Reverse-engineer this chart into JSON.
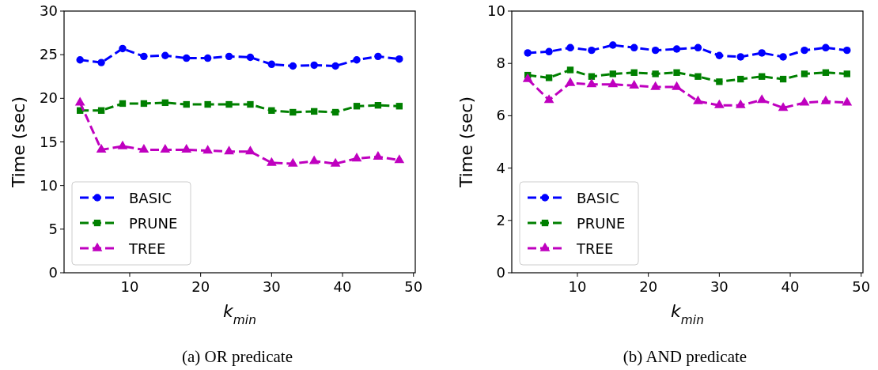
{
  "chart_data": [
    {
      "type": "line",
      "xlabel": "k$_{min}$",
      "ylabel": "Time (sec)",
      "annotations": [
        "(a) OR predicate"
      ],
      "x": [
        3,
        6,
        9,
        12,
        15,
        18,
        21,
        24,
        27,
        30,
        33,
        36,
        39,
        42,
        45,
        48
      ],
      "xlim": [
        0.75,
        50.25
      ],
      "xticks": [
        10,
        20,
        30,
        40,
        50
      ],
      "ylim": [
        0,
        30
      ],
      "yticks": [
        0,
        5,
        10,
        15,
        20,
        25,
        30
      ],
      "legend": "bottom left",
      "line_style": "dashed",
      "grid": false,
      "series": [
        {
          "name": "BASIC",
          "color": "#0000ff",
          "marker": "circle",
          "values": [
            24.4,
            24.1,
            25.7,
            24.8,
            24.9,
            24.6,
            24.6,
            24.8,
            24.7,
            23.9,
            23.7,
            23.8,
            23.7,
            24.4,
            24.8,
            24.5
          ]
        },
        {
          "name": "PRUNE",
          "color": "#008000",
          "marker": "square",
          "values": [
            18.6,
            18.6,
            19.4,
            19.4,
            19.5,
            19.3,
            19.3,
            19.3,
            19.3,
            18.6,
            18.4,
            18.5,
            18.4,
            19.1,
            19.2,
            19.1
          ]
        },
        {
          "name": "TREE",
          "color": "#bf00bf",
          "marker": "triangle",
          "values": [
            19.5,
            14.1,
            14.5,
            14.1,
            14.1,
            14.1,
            14.0,
            13.9,
            13.9,
            12.6,
            12.5,
            12.8,
            12.5,
            13.1,
            13.3,
            12.9
          ]
        }
      ]
    },
    {
      "type": "line",
      "xlabel": "k$_{min}$",
      "ylabel": "Time (sec)",
      "annotations": [
        "(b) AND predicate"
      ],
      "x": [
        3,
        6,
        9,
        12,
        15,
        18,
        21,
        24,
        27,
        30,
        33,
        36,
        39,
        42,
        45,
        48
      ],
      "xlim": [
        0.75,
        50.25
      ],
      "xticks": [
        10,
        20,
        30,
        40,
        50
      ],
      "ylim": [
        0,
        10
      ],
      "yticks": [
        0,
        2,
        4,
        6,
        8,
        10
      ],
      "legend": "bottom left",
      "line_style": "dashed",
      "grid": false,
      "series": [
        {
          "name": "BASIC",
          "color": "#0000ff",
          "marker": "circle",
          "values": [
            8.4,
            8.45,
            8.6,
            8.5,
            8.7,
            8.6,
            8.5,
            8.55,
            8.6,
            8.3,
            8.25,
            8.4,
            8.25,
            8.5,
            8.6,
            8.5
          ]
        },
        {
          "name": "PRUNE",
          "color": "#008000",
          "marker": "square",
          "values": [
            7.55,
            7.45,
            7.75,
            7.5,
            7.6,
            7.65,
            7.6,
            7.65,
            7.5,
            7.3,
            7.4,
            7.5,
            7.4,
            7.6,
            7.65,
            7.6
          ]
        },
        {
          "name": "TREE",
          "color": "#bf00bf",
          "marker": "triangle",
          "values": [
            7.4,
            6.6,
            7.25,
            7.2,
            7.2,
            7.15,
            7.1,
            7.1,
            6.55,
            6.4,
            6.4,
            6.6,
            6.3,
            6.5,
            6.55,
            6.5
          ]
        }
      ]
    }
  ]
}
